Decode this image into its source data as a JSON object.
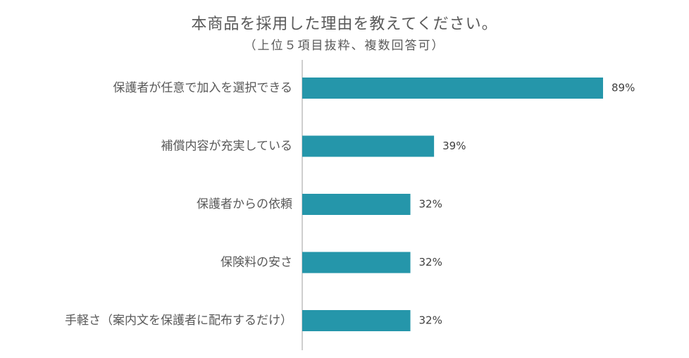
{
  "chart_data": {
    "type": "bar",
    "orientation": "horizontal",
    "title": "本商品を採用した理由を教えてください。",
    "subtitle": "（上位５項目抜粋、複数回答可）",
    "categories": [
      "保護者が任意で加入を選択できる",
      "補償内容が充実している",
      "保護者からの依頼",
      "保険料の安さ",
      "手軽さ（案内文を保護者に配布するだけ）"
    ],
    "values": [
      89,
      39,
      32,
      32,
      32
    ],
    "value_labels": [
      "89%",
      "39%",
      "32%",
      "32%",
      "32%"
    ],
    "xlim": [
      0,
      100
    ],
    "bar_color": "#2596aa",
    "axis_color": "#bfbfbf",
    "grid": false
  }
}
